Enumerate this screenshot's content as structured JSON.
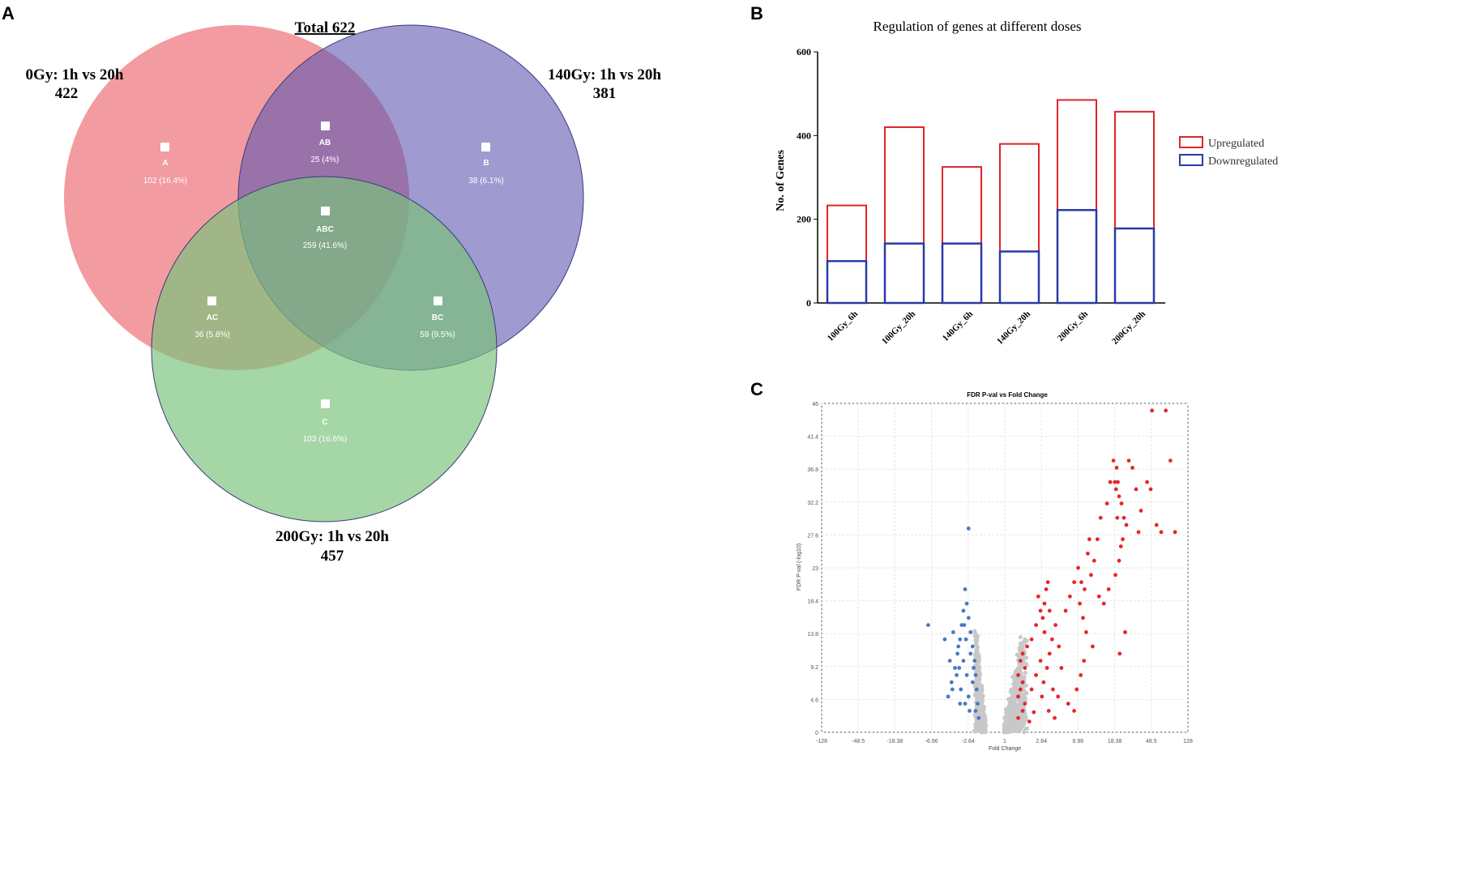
{
  "panels": {
    "a": "A",
    "b": "B",
    "c": "C"
  },
  "colors": {
    "circle_a": "#ee7f87",
    "circle_b": "#7b74c2",
    "circle_c": "#88cc88",
    "up": "#e0242a",
    "down": "#2a3aa6",
    "volcano_up": "#e8262a",
    "volcano_down": "#4a78c4",
    "volcano_ns": "#c8c8c8"
  },
  "venn": {
    "total": "Total 622",
    "sets": [
      {
        "line1": "0Gy: 1h vs 20h",
        "line2": "422"
      },
      {
        "line1": "140Gy: 1h vs 20h",
        "line2": "381"
      },
      {
        "line1": "200Gy: 1h vs 20h",
        "line2": "457"
      }
    ],
    "regions": [
      {
        "label": "A",
        "value": "102 (16.4%)"
      },
      {
        "label": "AB",
        "value": "25 (4%)"
      },
      {
        "label": "B",
        "value": "38 (6.1%)"
      },
      {
        "label": "ABC",
        "value": "259 (41.6%)"
      },
      {
        "label": "AC",
        "value": "36 (5.8%)"
      },
      {
        "label": "BC",
        "value": "59 (9.5%)"
      },
      {
        "label": "C",
        "value": "103 (16.6%)"
      }
    ]
  },
  "chart_data": [
    {
      "type": "bar",
      "title": "Regulation of genes at different doses",
      "xlabel": "",
      "ylabel": "No. of Genes",
      "ylim": [
        0,
        600
      ],
      "yticks": [
        "0",
        "200",
        "400",
        "600"
      ],
      "categories": [
        "100Gy_6h",
        "100Gy_20h",
        "140Gy_6h",
        "140Gy_20h",
        "200Gy_6h",
        "200Gy_20h"
      ],
      "series": [
        {
          "name": "Upregulated",
          "values": [
            233,
            420,
            325,
            380,
            485,
            457
          ]
        },
        {
          "name": "Downregulated",
          "values": [
            100,
            142,
            142,
            123,
            222,
            178
          ]
        }
      ],
      "legend": "right"
    },
    {
      "type": "scatter",
      "title": "FDR P-val vs Fold Change",
      "xlabel": "Fold Change",
      "ylabel": "FDR P-val (-log10)",
      "xticks": [
        "-128",
        "-48.5",
        "-18.38",
        "-6.96",
        "-2.64",
        "1",
        "2.64",
        "6.96",
        "18.38",
        "48.5",
        "128"
      ],
      "yticks": [
        "0",
        "4.6",
        "9.2",
        "13.8",
        "18.4",
        "23",
        "27.6",
        "32.2",
        "36.8",
        "41.4",
        "46"
      ],
      "ylim": [
        0,
        46
      ],
      "series": [
        {
          "name": "Upregulated",
          "points": [
            [
              1.6,
              2
            ],
            [
              1.8,
              3
            ],
            [
              1.6,
              5
            ],
            [
              1.7,
              6
            ],
            [
              1.8,
              7
            ],
            [
              1.6,
              8
            ],
            [
              1.9,
              9
            ],
            [
              1.7,
              10
            ],
            [
              1.8,
              11
            ],
            [
              2.0,
              12
            ],
            [
              1.9,
              4
            ],
            [
              2.2,
              6
            ],
            [
              2.4,
              8
            ],
            [
              2.6,
              10
            ],
            [
              2.2,
              13
            ],
            [
              2.4,
              15
            ],
            [
              2.6,
              17
            ],
            [
              2.5,
              19
            ],
            [
              2.8,
              16
            ],
            [
              3.0,
              14
            ],
            [
              3.0,
              18
            ],
            [
              3.4,
              21
            ],
            [
              3.2,
              20
            ],
            [
              3.6,
              17
            ],
            [
              2.7,
              5
            ],
            [
              2.9,
              7
            ],
            [
              3.3,
              9
            ],
            [
              3.6,
              11
            ],
            [
              3.9,
              13
            ],
            [
              4.3,
              15
            ],
            [
              4.7,
              12
            ],
            [
              4.0,
              6
            ],
            [
              4.6,
              5
            ],
            [
              5.0,
              9
            ],
            [
              5.5,
              17
            ],
            [
              6.0,
              19
            ],
            [
              6.5,
              21
            ],
            [
              7.0,
              23
            ],
            [
              7.5,
              18
            ],
            [
              8.0,
              21
            ],
            [
              8.5,
              16
            ],
            [
              9.0,
              20
            ],
            [
              10,
              25
            ],
            [
              11,
              22
            ],
            [
              12,
              24
            ],
            [
              13,
              27
            ],
            [
              10.5,
              27
            ],
            [
              9.5,
              14
            ],
            [
              8.8,
              10
            ],
            [
              7.8,
              8
            ],
            [
              6.8,
              6
            ],
            [
              5.8,
              4
            ],
            [
              6.5,
              3
            ],
            [
              4.2,
              2
            ],
            [
              3.5,
              3
            ],
            [
              15,
              18
            ],
            [
              14,
              30
            ],
            [
              16,
              32
            ],
            [
              17,
              35
            ],
            [
              18,
              38
            ],
            [
              18.5,
              35
            ],
            [
              19.5,
              34
            ],
            [
              20,
              37
            ],
            [
              21,
              35
            ],
            [
              22,
              33
            ],
            [
              24,
              32
            ],
            [
              26,
              30
            ],
            [
              28,
              29
            ],
            [
              20.5,
              30
            ],
            [
              23.5,
              26
            ],
            [
              22,
              24
            ],
            [
              25,
              27
            ],
            [
              27,
              14
            ],
            [
              22.5,
              11
            ],
            [
              30,
              38
            ],
            [
              33,
              37
            ],
            [
              36,
              34
            ],
            [
              40,
              31
            ],
            [
              45,
              35
            ],
            [
              50,
              45
            ],
            [
              60,
              29
            ],
            [
              70,
              28
            ],
            [
              80,
              45
            ],
            [
              90,
              38
            ],
            [
              100,
              28
            ],
            [
              48,
              34
            ],
            [
              38,
              28
            ],
            [
              19,
              22
            ],
            [
              16.5,
              20
            ],
            [
              13.5,
              19
            ],
            [
              11.5,
              12
            ],
            [
              2.1,
              1.5
            ],
            [
              2.3,
              2.8
            ]
          ]
        },
        {
          "name": "Downregulated",
          "points": [
            [
              -1.6,
              2
            ],
            [
              -1.7,
              4
            ],
            [
              -1.8,
              6
            ],
            [
              -1.9,
              8
            ],
            [
              -2.0,
              10
            ],
            [
              -2.2,
              12
            ],
            [
              -2.4,
              14
            ],
            [
              -2.6,
              16
            ],
            [
              -2.8,
              18
            ],
            [
              -3.0,
              20
            ],
            [
              -3.2,
              17
            ],
            [
              -3.4,
              15
            ],
            [
              -3.6,
              13
            ],
            [
              -3.9,
              11
            ],
            [
              -4.2,
              9
            ],
            [
              -4.6,
              7
            ],
            [
              -5.0,
              5
            ],
            [
              -3.5,
              6
            ],
            [
              -3.0,
              4
            ],
            [
              -2.5,
              3
            ],
            [
              -2.8,
              8
            ],
            [
              -3.2,
              10
            ],
            [
              -2.1,
              9
            ],
            [
              -2.4,
              11
            ],
            [
              -3.8,
              12
            ],
            [
              -4.4,
              14
            ],
            [
              -2.9,
              13
            ],
            [
              -2.6,
              5
            ],
            [
              -3.6,
              4
            ],
            [
              -4.0,
              8
            ],
            [
              -2.6,
              28.5
            ],
            [
              -8.0,
              15
            ],
            [
              -1.9,
              3
            ],
            [
              -2.2,
              7
            ],
            [
              -3.1,
              15
            ],
            [
              -4.8,
              10
            ],
            [
              -5.4,
              13
            ],
            [
              -4.5,
              6
            ],
            [
              -3.7,
              9
            ]
          ]
        }
      ]
    }
  ]
}
